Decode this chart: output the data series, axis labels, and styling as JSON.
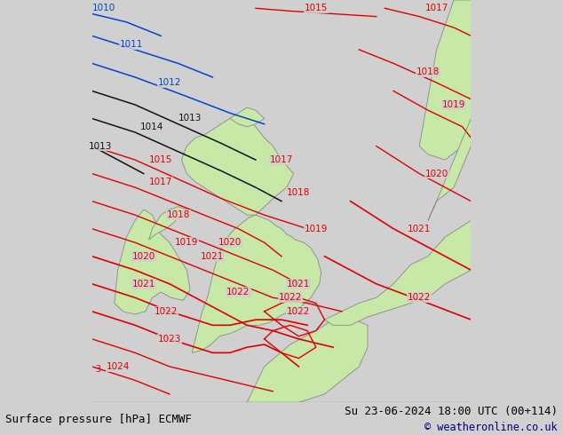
{
  "title_left": "Surface pressure [hPa] ECMWF",
  "title_right": "Su 23-06-2024 18:00 UTC (00+114)",
  "copyright": "© weatheronline.co.uk",
  "bg_color": "#d0d0d0",
  "land_color": "#c8e8a8",
  "border_color": "#888888",
  "sea_color": "#d0d0d0",
  "red_line_color": "#dd0000",
  "blue_line_color": "#0044cc",
  "black_line_color": "#111111",
  "white_color": "#d0d0d0",
  "font_size_isobar": 7.5,
  "font_size_bottom": 9.0,
  "font_size_copyright": 8.5,
  "figsize": [
    6.34,
    4.9
  ],
  "dpi": 100,
  "xlim": [
    -11.5,
    10.5
  ],
  "ylim": [
    48.2,
    62.8
  ]
}
